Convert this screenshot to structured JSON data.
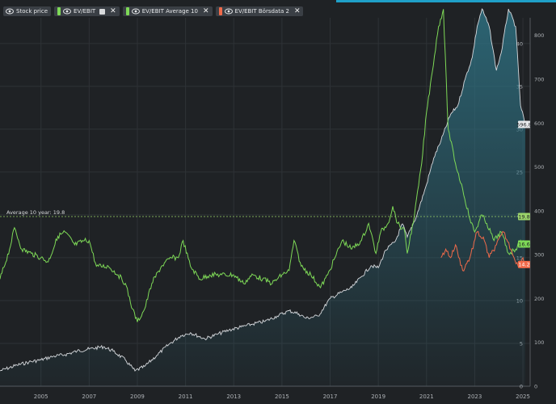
{
  "legend": {
    "items": [
      {
        "label": "Stock price",
        "color": null,
        "closable": false,
        "has_settings": false
      },
      {
        "label": "EV/EBIT",
        "color": "#7ed957",
        "closable": true,
        "has_settings": true
      },
      {
        "label": "EV/EBIT Average 10",
        "color": "#7ed957",
        "closable": true,
        "has_settings": false
      },
      {
        "label": "EV/EBIT Börsdata 2",
        "color": "#f06a4a",
        "closable": true,
        "has_settings": false
      }
    ]
  },
  "colors": {
    "background": "#1f2225",
    "grid": "#2e3236",
    "stock": "#d5d8dc",
    "area_top": "#2e6f80",
    "ev_ebit": "#7ed957",
    "borsdata": "#f06a4a",
    "average_line": "#9bd36a"
  },
  "avg_label": "Average 10 year: 19.8",
  "chart_data": {
    "type": "line",
    "x_range": [
      2003.3,
      2025.3
    ],
    "x_ticks": [
      "2005",
      "2007",
      "2009",
      "2011",
      "2013",
      "2015",
      "2017",
      "2019",
      "2021",
      "2023",
      "2025"
    ],
    "y_left": {
      "label": "EV/EBIT",
      "ylim": [
        0,
        43
      ],
      "ticks": [
        "0",
        "5",
        "10",
        "15",
        "20",
        "25",
        "30",
        "35",
        "40"
      ]
    },
    "y_right": {
      "label": "Stock price",
      "ylim": [
        0,
        840
      ],
      "ticks": [
        "0",
        "100",
        "200",
        "300",
        "400",
        "500",
        "600",
        "700",
        "800"
      ]
    },
    "average_value": 19.8,
    "end_labels": [
      {
        "text": "596.8",
        "value": 596.8,
        "axis": "right",
        "series": "Stock price"
      },
      {
        "text": "19.8",
        "value": 19.8,
        "axis": "left",
        "series": "EV/EBIT Average 10"
      },
      {
        "text": "16.6",
        "value": 16.6,
        "axis": "left",
        "series": "EV/EBIT"
      },
      {
        "text": "14.2",
        "value": 14.2,
        "axis": "left",
        "series": "EV/EBIT Börsdata 2"
      }
    ],
    "series": [
      {
        "name": "Stock price",
        "axis": "right",
        "points": [
          [
            2003.3,
            35
          ],
          [
            2004.0,
            48
          ],
          [
            2004.5,
            55
          ],
          [
            2005.0,
            60
          ],
          [
            2005.5,
            68
          ],
          [
            2006.0,
            72
          ],
          [
            2006.5,
            80
          ],
          [
            2007.0,
            85
          ],
          [
            2007.6,
            90
          ],
          [
            2008.0,
            80
          ],
          [
            2008.5,
            60
          ],
          [
            2008.9,
            35
          ],
          [
            2009.3,
            45
          ],
          [
            2009.8,
            70
          ],
          [
            2010.3,
            95
          ],
          [
            2010.8,
            115
          ],
          [
            2011.2,
            122
          ],
          [
            2011.8,
            108
          ],
          [
            2012.3,
            118
          ],
          [
            2012.8,
            128
          ],
          [
            2013.3,
            135
          ],
          [
            2013.8,
            142
          ],
          [
            2014.3,
            148
          ],
          [
            2014.8,
            160
          ],
          [
            2015.3,
            172
          ],
          [
            2015.7,
            165
          ],
          [
            2016.0,
            155
          ],
          [
            2016.5,
            160
          ],
          [
            2017.0,
            200
          ],
          [
            2017.5,
            215
          ],
          [
            2017.9,
            225
          ],
          [
            2018.3,
            250
          ],
          [
            2018.7,
            275
          ],
          [
            2019.0,
            270
          ],
          [
            2019.3,
            310
          ],
          [
            2019.7,
            330
          ],
          [
            2020.0,
            370
          ],
          [
            2020.2,
            340
          ],
          [
            2020.6,
            390
          ],
          [
            2021.0,
            460
          ],
          [
            2021.3,
            520
          ],
          [
            2021.6,
            560
          ],
          [
            2022.0,
            620
          ],
          [
            2022.3,
            640
          ],
          [
            2022.6,
            700
          ],
          [
            2022.9,
            750
          ],
          [
            2023.1,
            820
          ],
          [
            2023.3,
            860
          ],
          [
            2023.6,
            820
          ],
          [
            2023.9,
            720
          ],
          [
            2024.1,
            760
          ],
          [
            2024.4,
            860
          ],
          [
            2024.7,
            820
          ],
          [
            2024.9,
            640
          ],
          [
            2025.1,
            596.8
          ]
        ]
      },
      {
        "name": "EV/EBIT",
        "axis": "left",
        "points": [
          [
            2003.3,
            12.5
          ],
          [
            2003.7,
            16
          ],
          [
            2003.9,
            18.5
          ],
          [
            2004.2,
            16
          ],
          [
            2004.6,
            15.5
          ],
          [
            2005.0,
            15
          ],
          [
            2005.3,
            14.5
          ],
          [
            2005.7,
            17.5
          ],
          [
            2006.0,
            18
          ],
          [
            2006.4,
            16.5
          ],
          [
            2006.8,
            17
          ],
          [
            2007.0,
            17
          ],
          [
            2007.3,
            14
          ],
          [
            2007.8,
            14
          ],
          [
            2008.2,
            13
          ],
          [
            2008.5,
            12
          ],
          [
            2008.8,
            9
          ],
          [
            2009.0,
            7.5
          ],
          [
            2009.3,
            9
          ],
          [
            2009.6,
            12
          ],
          [
            2010.0,
            14
          ],
          [
            2010.4,
            15
          ],
          [
            2010.7,
            15
          ],
          [
            2010.9,
            17
          ],
          [
            2011.2,
            14
          ],
          [
            2011.6,
            12.5
          ],
          [
            2012.0,
            13
          ],
          [
            2012.5,
            13
          ],
          [
            2013.0,
            13
          ],
          [
            2013.4,
            12
          ],
          [
            2013.8,
            13
          ],
          [
            2014.2,
            12.5
          ],
          [
            2014.6,
            12
          ],
          [
            2015.0,
            13
          ],
          [
            2015.3,
            13.5
          ],
          [
            2015.5,
            17
          ],
          [
            2015.8,
            14
          ],
          [
            2016.2,
            13
          ],
          [
            2016.6,
            11.5
          ],
          [
            2016.9,
            13
          ],
          [
            2017.2,
            15
          ],
          [
            2017.5,
            17
          ],
          [
            2017.9,
            16
          ],
          [
            2018.3,
            17
          ],
          [
            2018.6,
            19
          ],
          [
            2018.9,
            15.5
          ],
          [
            2019.1,
            18
          ],
          [
            2019.4,
            19
          ],
          [
            2019.6,
            21
          ],
          [
            2019.8,
            19
          ],
          [
            2020.1,
            18
          ],
          [
            2020.2,
            15.5
          ],
          [
            2020.5,
            20
          ],
          [
            2020.8,
            26
          ],
          [
            2021.0,
            32
          ],
          [
            2021.2,
            36
          ],
          [
            2021.5,
            42
          ],
          [
            2021.7,
            44
          ],
          [
            2021.9,
            30
          ],
          [
            2022.2,
            26
          ],
          [
            2022.5,
            23
          ],
          [
            2022.8,
            19.5
          ],
          [
            2023.0,
            18
          ],
          [
            2023.3,
            20
          ],
          [
            2023.5,
            19
          ],
          [
            2023.8,
            17
          ],
          [
            2024.1,
            18
          ],
          [
            2024.4,
            15.5
          ],
          [
            2024.7,
            16
          ],
          [
            2024.9,
            17
          ],
          [
            2025.1,
            16.6
          ]
        ]
      },
      {
        "name": "EV/EBIT Börsdata 2",
        "axis": "left",
        "points": [
          [
            2021.6,
            15
          ],
          [
            2021.8,
            16
          ],
          [
            2022.0,
            15
          ],
          [
            2022.2,
            16.5
          ],
          [
            2022.5,
            13.5
          ],
          [
            2022.8,
            15
          ],
          [
            2023.1,
            18
          ],
          [
            2023.4,
            17
          ],
          [
            2023.6,
            15
          ],
          [
            2023.9,
            16.5
          ],
          [
            2024.2,
            18
          ],
          [
            2024.5,
            16
          ],
          [
            2024.8,
            14
          ],
          [
            2025.0,
            15
          ],
          [
            2025.1,
            14.2
          ]
        ]
      }
    ]
  }
}
